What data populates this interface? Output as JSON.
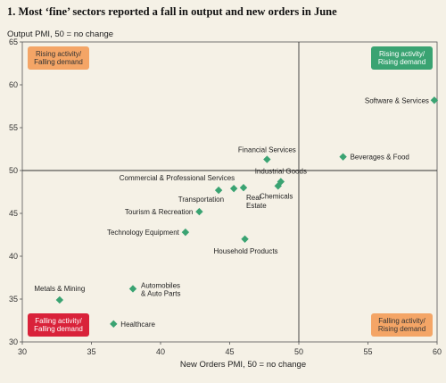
{
  "chart_data": {
    "type": "scatter",
    "title": "1.  Most ‘fine’ sectors reported a fall in output and new orders in June",
    "xlabel": "New Orders PMI, 50 = no change",
    "ylabel": "Output PMI, 50 = no change",
    "xlim": [
      30,
      60
    ],
    "ylim": [
      30,
      65
    ],
    "xticks": [
      30,
      35,
      40,
      45,
      50,
      55,
      60
    ],
    "yticks": [
      30,
      35,
      40,
      45,
      50,
      55,
      60,
      65
    ],
    "reference_lines": {
      "x": 50,
      "y": 50
    },
    "grid": false,
    "marker": "diamond",
    "marker_color": "#3aa372",
    "points": [
      {
        "label": "Software & Services",
        "x": 59.8,
        "y": 58.2
      },
      {
        "label": "Beverages & Food",
        "x": 53.2,
        "y": 51.6
      },
      {
        "label": "Financial Services",
        "x": 47.7,
        "y": 51.3
      },
      {
        "label": "Industrial Goods",
        "x": 48.7,
        "y": 48.7
      },
      {
        "label": "Chemicals",
        "x": 48.5,
        "y": 48.2
      },
      {
        "label": "Real Estate",
        "x": 46.0,
        "y": 48.0
      },
      {
        "label": "Commercial & Professional Services",
        "x": 45.3,
        "y": 47.9
      },
      {
        "label": "Transportation",
        "x": 44.2,
        "y": 47.7
      },
      {
        "label": "Tourism & Recreation",
        "x": 42.8,
        "y": 45.2
      },
      {
        "label": "Technology Equipment",
        "x": 41.8,
        "y": 42.8
      },
      {
        "label": "Household Products",
        "x": 46.1,
        "y": 42.0
      },
      {
        "label": "Automobiles & Auto Parts",
        "x": 38.0,
        "y": 36.2
      },
      {
        "label": "Metals & Mining",
        "x": 32.7,
        "y": 34.9
      },
      {
        "label": "Healthcare",
        "x": 36.6,
        "y": 32.1
      }
    ],
    "quadrants": [
      {
        "lines": [
          "Rising activity/",
          "Falling demand"
        ],
        "position": "top-left",
        "color": "#f4a566",
        "text_color": "#333333"
      },
      {
        "lines": [
          "Rising activity/",
          "Rising demand"
        ],
        "position": "top-right",
        "color": "#3aa372",
        "text_color": "#ffffff"
      },
      {
        "lines": [
          "Falling activity/",
          "Falling demand"
        ],
        "position": "bottom-left",
        "color": "#d9223a",
        "text_color": "#ffffff"
      },
      {
        "lines": [
          "Falling activity/",
          "Rising demand"
        ],
        "position": "bottom-right",
        "color": "#f4a566",
        "text_color": "#333333"
      }
    ]
  }
}
